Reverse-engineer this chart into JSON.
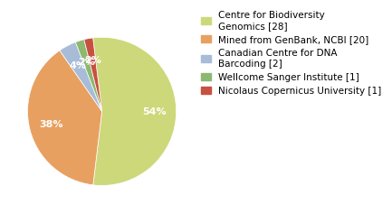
{
  "labels": [
    "Centre for Biodiversity\nGenomics [28]",
    "Mined from GenBank, NCBI [20]",
    "Canadian Centre for DNA\nBarcoding [2]",
    "Wellcome Sanger Institute [1]",
    "Nicolaus Copernicus University [1]"
  ],
  "values": [
    28,
    20,
    2,
    1,
    1
  ],
  "colors": [
    "#cdd87a",
    "#e8a060",
    "#a8bcd8",
    "#8db870",
    "#c85040"
  ],
  "background_color": "#ffffff",
  "legend_fontsize": 7.5,
  "autopct_fontsize": 8,
  "startangle": 97
}
